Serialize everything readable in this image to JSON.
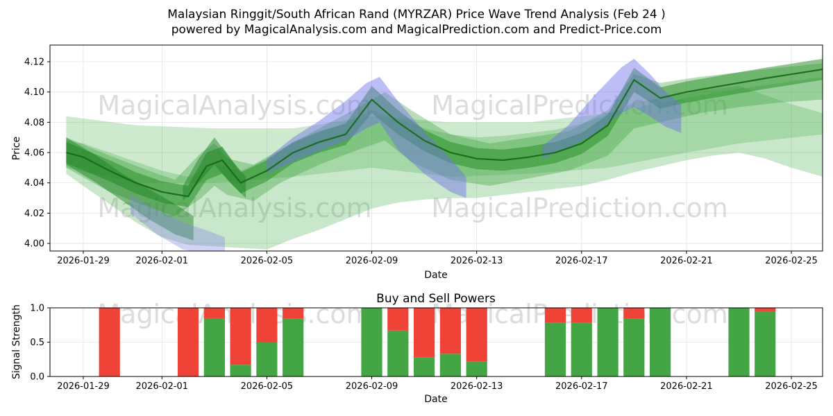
{
  "figure": {
    "watermark_left": "MagicalAnalysis.com",
    "watermark_right": "MagicalPrediction.com"
  },
  "chart_data": [
    {
      "type": "area",
      "name": "price-wave-trend",
      "title_line1": "Malaysian Ringgit/South African Rand (MYRZAR) Price Wave Trend Analysis (Feb 24 )",
      "title_line2": "powered by MagicalAnalysis.com and MagicalPrediction.com and Predict-Price.com",
      "xlabel": "Date",
      "ylabel": "Price",
      "ylim": [
        3.995,
        4.131
      ],
      "xlim_days": [
        -1.27,
        28.19
      ],
      "grid": true,
      "yticks": [
        4.0,
        4.02,
        4.04,
        4.06,
        4.08,
        4.1,
        4.12
      ],
      "ytick_labels": [
        "4.00",
        "4.02",
        "4.04",
        "4.06",
        "4.08",
        "4.10",
        "4.12"
      ],
      "xticks": [
        {
          "day": 0,
          "label": "2026-01-29"
        },
        {
          "day": 3,
          "label": "2026-02-01"
        },
        {
          "day": 7,
          "label": "2026-02-05"
        },
        {
          "day": 11,
          "label": "2026-02-09"
        },
        {
          "day": 15,
          "label": "2026-02-13"
        },
        {
          "day": 19,
          "label": "2026-02-17"
        },
        {
          "day": 23,
          "label": "2026-02-21"
        },
        {
          "day": 27,
          "label": "2026-02-25"
        }
      ],
      "bands": [
        {
          "name": "outer-fan-low",
          "color": "rgba(76,175,80,0.30)",
          "points": [
            [
              -0.65,
              4.046,
              4.068
            ],
            [
              0,
              4.038,
              4.066
            ],
            [
              1,
              4.026,
              4.06
            ],
            [
              2,
              4.014,
              4.054
            ],
            [
              3,
              4.004,
              4.048
            ],
            [
              4,
              3.999,
              4.044
            ],
            [
              5,
              3.998,
              4.052
            ],
            [
              6,
              3.997,
              4.048
            ],
            [
              7,
              3.996,
              4.056
            ],
            [
              8,
              4.003,
              4.066
            ],
            [
              9,
              4.009,
              4.073
            ],
            [
              10,
              4.016,
              4.08
            ],
            [
              11,
              4.023,
              4.088
            ],
            [
              12,
              4.027,
              4.082
            ],
            [
              13,
              4.029,
              4.076
            ],
            [
              14,
              4.03,
              4.072
            ],
            [
              15,
              4.03,
              4.07
            ],
            [
              16,
              4.032,
              4.071
            ],
            [
              17,
              4.034,
              4.073
            ],
            [
              18,
              4.036,
              4.075
            ],
            [
              19,
              4.038,
              4.079
            ],
            [
              20,
              4.042,
              4.085
            ],
            [
              21,
              4.047,
              4.093
            ],
            [
              22,
              4.051,
              4.096
            ],
            [
              23,
              4.055,
              4.099
            ],
            [
              24,
              4.058,
              4.102
            ],
            [
              25,
              4.06,
              4.104
            ],
            [
              26,
              4.056,
              4.098
            ],
            [
              27,
              4.05,
              4.092
            ],
            [
              28.2,
              4.044,
              4.086
            ]
          ]
        },
        {
          "name": "middle-channel",
          "color": "rgba(76,175,80,0.28)",
          "points": [
            [
              -0.65,
              4.05,
              4.084
            ],
            [
              2,
              4.04,
              4.078
            ],
            [
              5,
              4.04,
              4.076
            ],
            [
              8,
              4.044,
              4.076
            ],
            [
              11,
              4.05,
              4.084
            ],
            [
              14,
              4.044,
              4.08
            ],
            [
              17,
              4.046,
              4.08
            ],
            [
              20,
              4.05,
              4.086
            ],
            [
              23,
              4.06,
              4.096
            ],
            [
              25,
              4.066,
              4.102
            ],
            [
              28.2,
              4.072,
              4.11
            ]
          ]
        },
        {
          "name": "wave-band",
          "color": "rgba(56,160,60,0.35)",
          "points": [
            [
              -0.65,
              4.05,
              4.07
            ],
            [
              1,
              4.034,
              4.058
            ],
            [
              2.5,
              4.024,
              4.048
            ],
            [
              3.5,
              4.018,
              4.042
            ],
            [
              4.5,
              4.03,
              4.06
            ],
            [
              5,
              4.038,
              4.066
            ],
            [
              5.5,
              4.032,
              4.056
            ],
            [
              6.5,
              4.028,
              4.052
            ],
            [
              7.5,
              4.04,
              4.062
            ],
            [
              9,
              4.052,
              4.076
            ],
            [
              10.5,
              4.062,
              4.09
            ],
            [
              11.5,
              4.068,
              4.1
            ],
            [
              12.5,
              4.054,
              4.088
            ],
            [
              14,
              4.042,
              4.072
            ],
            [
              15.5,
              4.038,
              4.066
            ],
            [
              17,
              4.043,
              4.07
            ],
            [
              18.5,
              4.048,
              4.074
            ],
            [
              20,
              4.058,
              4.088
            ],
            [
              21,
              4.076,
              4.112
            ],
            [
              22,
              4.08,
              4.106
            ],
            [
              23.5,
              4.086,
              4.11
            ],
            [
              25,
              4.09,
              4.113
            ],
            [
              26.5,
              4.093,
              4.116
            ],
            [
              28.2,
              4.095,
              4.119
            ]
          ]
        },
        {
          "name": "core-band",
          "color": "rgba(34,139,34,0.50)",
          "points": [
            [
              -0.65,
              4.053,
              4.067
            ],
            [
              1,
              4.041,
              4.055
            ],
            [
              2,
              4.033,
              4.047
            ],
            [
              3,
              4.027,
              4.041
            ],
            [
              4,
              4.024,
              4.038
            ],
            [
              4.7,
              4.042,
              4.06
            ],
            [
              5.3,
              4.046,
              4.064
            ],
            [
              6,
              4.033,
              4.047
            ],
            [
              7,
              4.041,
              4.055
            ],
            [
              8,
              4.053,
              4.067
            ],
            [
              9,
              4.06,
              4.074
            ],
            [
              10,
              4.065,
              4.079
            ],
            [
              11,
              4.086,
              4.104
            ],
            [
              12,
              4.072,
              4.088
            ],
            [
              13,
              4.061,
              4.075
            ],
            [
              14,
              4.053,
              4.067
            ],
            [
              15,
              4.049,
              4.063
            ],
            [
              16,
              4.048,
              4.062
            ],
            [
              17,
              4.05,
              4.064
            ],
            [
              18,
              4.053,
              4.067
            ],
            [
              19,
              4.059,
              4.073
            ],
            [
              20,
              4.071,
              4.085
            ],
            [
              21,
              4.1,
              4.116
            ],
            [
              22,
              4.089,
              4.103
            ],
            [
              23,
              4.093,
              4.107
            ],
            [
              24,
              4.096,
              4.11
            ],
            [
              25,
              4.099,
              4.113
            ],
            [
              26,
              4.102,
              4.116
            ],
            [
              28.2,
              4.108,
              4.122
            ]
          ]
        },
        {
          "name": "start-wedge",
          "color": "rgba(27,125,30,0.45)",
          "points": [
            [
              -0.65,
              4.052,
              4.07
            ],
            [
              0.5,
              4.04,
              4.058
            ],
            [
              1.5,
              4.028,
              4.046
            ],
            [
              2.5,
              4.016,
              4.036
            ],
            [
              3.5,
              4.006,
              4.026
            ],
            [
              4.2,
              4.002,
              4.018
            ]
          ]
        },
        {
          "name": "spike-wedge",
          "color": "rgba(27,125,30,0.45)",
          "points": [
            [
              3.8,
              4.028,
              4.038
            ],
            [
              4.4,
              4.04,
              4.056
            ],
            [
              5,
              4.052,
              4.07
            ],
            [
              5.6,
              4.04,
              4.056
            ],
            [
              6.2,
              4.03,
              4.044
            ]
          ]
        },
        {
          "name": "blue-wave-feb09",
          "color": "rgba(110,110,235,0.45)",
          "points": [
            [
              7,
              4.046,
              4.056
            ],
            [
              8,
              4.054,
              4.07
            ],
            [
              9,
              4.061,
              4.081
            ],
            [
              10,
              4.068,
              4.094
            ],
            [
              10.8,
              4.076,
              4.106
            ],
            [
              11.3,
              4.08,
              4.11
            ],
            [
              12,
              4.062,
              4.094
            ],
            [
              13,
              4.046,
              4.074
            ],
            [
              14,
              4.034,
              4.056
            ],
            [
              14.6,
              4.03,
              4.044
            ]
          ]
        },
        {
          "name": "blue-wave-feb19",
          "color": "rgba(110,110,235,0.45)",
          "points": [
            [
              17.5,
              4.056,
              4.064
            ],
            [
              18.5,
              4.063,
              4.078
            ],
            [
              19.5,
              4.072,
              4.098
            ],
            [
              20.5,
              4.086,
              4.116
            ],
            [
              21,
              4.09,
              4.122
            ],
            [
              21.6,
              4.084,
              4.112
            ],
            [
              22.2,
              4.077,
              4.1
            ],
            [
              22.8,
              4.073,
              4.092
            ]
          ]
        },
        {
          "name": "blue-wave-feb01",
          "color": "rgba(130,130,235,0.35)",
          "points": [
            [
              1.8,
              4.02,
              4.032
            ],
            [
              2.8,
              4.006,
              4.022
            ],
            [
              3.8,
              3.996,
              4.014
            ],
            [
              4.8,
              3.993,
              4.008
            ],
            [
              5.4,
              3.994,
              4.004
            ]
          ]
        }
      ],
      "trend": {
        "color": "#156815",
        "width": 2.2,
        "points": [
          [
            -0.65,
            4.06
          ],
          [
            0,
            4.057
          ],
          [
            1,
            4.048
          ],
          [
            2,
            4.04
          ],
          [
            3,
            4.034
          ],
          [
            4,
            4.031
          ],
          [
            4.7,
            4.051
          ],
          [
            5.3,
            4.055
          ],
          [
            6,
            4.04
          ],
          [
            7,
            4.048
          ],
          [
            8,
            4.06
          ],
          [
            9,
            4.067
          ],
          [
            10,
            4.072
          ],
          [
            11,
            4.095
          ],
          [
            12,
            4.08
          ],
          [
            13,
            4.068
          ],
          [
            14,
            4.06
          ],
          [
            15,
            4.056
          ],
          [
            16,
            4.055
          ],
          [
            17,
            4.057
          ],
          [
            18,
            4.06
          ],
          [
            19,
            4.066
          ],
          [
            20,
            4.078
          ],
          [
            21,
            4.108
          ],
          [
            22,
            4.096
          ],
          [
            23,
            4.1
          ],
          [
            24,
            4.103
          ],
          [
            25,
            4.106
          ],
          [
            26,
            4.109
          ],
          [
            28.2,
            4.115
          ]
        ]
      }
    },
    {
      "type": "bar",
      "name": "buy-sell-powers",
      "title": "Buy and Sell Powers",
      "xlabel": "Date",
      "ylabel": "Signal Strength",
      "ylim": [
        0,
        1.0
      ],
      "stacked": true,
      "grid": true,
      "yticks": [
        0.0,
        0.5,
        1.0
      ],
      "ytick_labels": [
        "0.0",
        "0.5",
        "1.0"
      ],
      "xticks": [
        {
          "day": 0,
          "label": "2026-01-29"
        },
        {
          "day": 3,
          "label": "2026-02-01"
        },
        {
          "day": 7,
          "label": "2026-02-05"
        },
        {
          "day": 11,
          "label": "2026-02-09"
        },
        {
          "day": 15,
          "label": "2026-02-13"
        },
        {
          "day": 19,
          "label": "2026-02-17"
        },
        {
          "day": 23,
          "label": "2026-02-21"
        },
        {
          "day": 27,
          "label": "2026-02-25"
        }
      ],
      "series_colors": {
        "buy": "#43a543",
        "sell": "#f04337"
      },
      "bars": [
        {
          "date": "2026-01-30",
          "day": 1,
          "buy": 0.0,
          "sell": 1.0
        },
        {
          "date": "2026-02-02",
          "day": 4,
          "buy": 0.0,
          "sell": 1.0
        },
        {
          "date": "2026-02-03",
          "day": 5,
          "buy": 0.85,
          "sell": 0.15
        },
        {
          "date": "2026-02-04",
          "day": 6,
          "buy": 0.17,
          "sell": 0.83
        },
        {
          "date": "2026-02-05",
          "day": 7,
          "buy": 0.5,
          "sell": 0.5
        },
        {
          "date": "2026-02-06",
          "day": 8,
          "buy": 0.84,
          "sell": 0.16
        },
        {
          "date": "2026-02-09",
          "day": 11,
          "buy": 1.0,
          "sell": 0.0
        },
        {
          "date": "2026-02-10",
          "day": 12,
          "buy": 0.67,
          "sell": 0.33
        },
        {
          "date": "2026-02-11",
          "day": 13,
          "buy": 0.28,
          "sell": 0.72
        },
        {
          "date": "2026-02-12",
          "day": 14,
          "buy": 0.33,
          "sell": 0.67
        },
        {
          "date": "2026-02-13",
          "day": 15,
          "buy": 0.22,
          "sell": 0.78
        },
        {
          "date": "2026-02-16",
          "day": 18,
          "buy": 0.78,
          "sell": 0.22
        },
        {
          "date": "2026-02-17",
          "day": 19,
          "buy": 0.78,
          "sell": 0.22
        },
        {
          "date": "2026-02-18",
          "day": 20,
          "buy": 1.0,
          "sell": 0.0
        },
        {
          "date": "2026-02-19",
          "day": 21,
          "buy": 0.84,
          "sell": 0.16
        },
        {
          "date": "2026-02-20",
          "day": 22,
          "buy": 1.0,
          "sell": 0.0
        },
        {
          "date": "2026-02-23",
          "day": 25,
          "buy": 1.0,
          "sell": 0.0
        },
        {
          "date": "2026-02-24",
          "day": 26,
          "buy": 0.95,
          "sell": 0.05
        }
      ]
    }
  ]
}
